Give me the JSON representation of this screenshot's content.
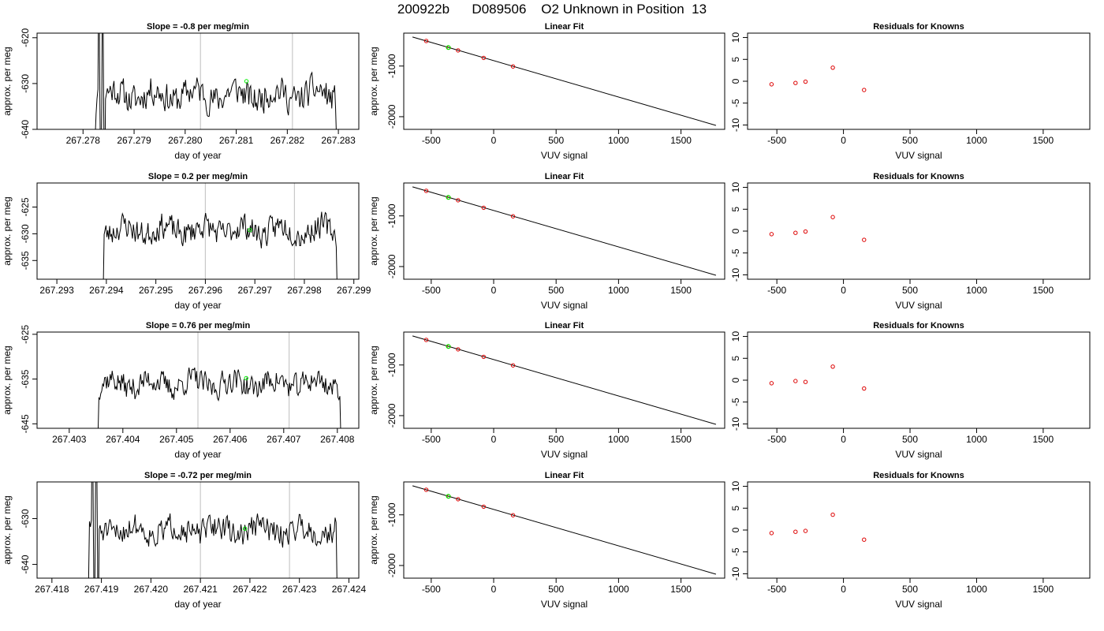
{
  "figure": {
    "title": "200922b      D089506    O2 Unknown in Position  13"
  },
  "chart_data": [
    {
      "type": "line",
      "panel": "timeseries",
      "row": 1,
      "title": "Slope =  -0.8  per meg/min",
      "xlabel": "day of year",
      "ylabel": "approx. per meg",
      "xlim": [
        267.2771,
        267.2834
      ],
      "ylim": [
        -640,
        -619
      ],
      "xticks": [
        267.278,
        267.279,
        267.28,
        267.281,
        267.282,
        267.283
      ],
      "xtick_labels": [
        "267.278",
        "267.279",
        "267.280",
        "267.281",
        "267.282",
        "267.283"
      ],
      "yticks": [
        -640,
        -630,
        -620
      ],
      "ytick_labels": [
        "-640",
        "-630",
        "-620"
      ],
      "vlines": [
        267.2803,
        267.2821
      ],
      "highlight_point": {
        "x": 267.2812,
        "y": -629.5
      },
      "series_x_range": [
        267.2782,
        267.283
      ],
      "series_y_offset": -632.5,
      "series_y_amp": 3.5,
      "series_seed": 11,
      "series_spikes": true
    },
    {
      "type": "line",
      "panel": "fit",
      "row": 1,
      "title": "Linear Fit",
      "xlabel": "VUV signal",
      "ylabel": "approx. per meg",
      "xlim": [
        -720,
        1850
      ],
      "ylim": [
        -2250,
        -350
      ],
      "xticks": [
        -500,
        0,
        500,
        1000,
        1500
      ],
      "xtick_labels": [
        "-500",
        "0",
        "500",
        "1000",
        "1500"
      ],
      "yticks": [
        -2000,
        -1000
      ],
      "ytick_labels": [
        "-2000",
        "-1000"
      ],
      "fit_line": {
        "x": [
          -650,
          1780
        ],
        "y": [
          -426,
          -2172
        ]
      },
      "points": {
        "x": [
          -540,
          -360,
          -285,
          -80,
          155
        ],
        "y": [
          -505,
          -636,
          -691,
          -839,
          -1008
        ]
      },
      "highlight_point": {
        "x": -363,
        "y": -634
      }
    },
    {
      "type": "scatter",
      "panel": "residuals",
      "row": 1,
      "title": "Residuals for Knowns",
      "xlabel": "VUV signal",
      "ylabel": "",
      "xlim": [
        -720,
        1850
      ],
      "ylim": [
        -11,
        11
      ],
      "xticks": [
        -500,
        0,
        500,
        1000,
        1500
      ],
      "xtick_labels": [
        "-500",
        "0",
        "500",
        "1000",
        "1500"
      ],
      "yticks": [
        -10,
        -5,
        0,
        5,
        10
      ],
      "ytick_labels": [
        "-10",
        "-5",
        "0",
        "5",
        "10"
      ],
      "points": {
        "x": [
          -540,
          -360,
          -285,
          -80,
          155
        ],
        "y": [
          -0.7,
          -0.4,
          -0.1,
          3.1,
          -2.0
        ]
      }
    },
    {
      "type": "line",
      "panel": "timeseries",
      "row": 2,
      "title": "Slope =  0.2  per meg/min",
      "xlabel": "day of year",
      "ylabel": "approx. per meg",
      "xlim": [
        267.2926,
        267.2991
      ],
      "ylim": [
        -638.5,
        -620.5
      ],
      "xticks": [
        267.293,
        267.294,
        267.295,
        267.296,
        267.297,
        267.298,
        267.299
      ],
      "xtick_labels": [
        "267.293",
        "267.294",
        "267.295",
        "267.296",
        "267.297",
        "267.298",
        "267.299"
      ],
      "yticks": [
        -635,
        -630,
        -625
      ],
      "ytick_labels": [
        "-635",
        "-630",
        "-625"
      ],
      "vlines": [
        267.296,
        267.2978
      ],
      "highlight_point": {
        "x": 267.2969,
        "y": -629.3
      },
      "series_x_range": [
        267.2939,
        267.2987
      ],
      "series_y_offset": -629.3,
      "series_y_amp": 2.6,
      "series_seed": 23,
      "series_spikes": false
    },
    {
      "type": "line",
      "panel": "fit",
      "row": 2,
      "title": "Linear Fit",
      "xlabel": "VUV signal",
      "ylabel": "approx. per meg",
      "xlim": [
        -720,
        1850
      ],
      "ylim": [
        -2250,
        -350
      ],
      "xticks": [
        -500,
        0,
        500,
        1000,
        1500
      ],
      "xtick_labels": [
        "-500",
        "0",
        "500",
        "1000",
        "1500"
      ],
      "yticks": [
        -2000,
        -1000
      ],
      "ytick_labels": [
        "-2000",
        "-1000"
      ],
      "fit_line": {
        "x": [
          -650,
          1780
        ],
        "y": [
          -426,
          -2172
        ]
      },
      "points": {
        "x": [
          -540,
          -360,
          -285,
          -80,
          155
        ],
        "y": [
          -505,
          -636,
          -691,
          -839,
          -1008
        ]
      },
      "highlight_point": {
        "x": -363,
        "y": -634
      }
    },
    {
      "type": "scatter",
      "panel": "residuals",
      "row": 2,
      "title": "Residuals for Knowns",
      "xlabel": "VUV signal",
      "ylabel": "",
      "xlim": [
        -720,
        1850
      ],
      "ylim": [
        -11,
        11
      ],
      "xticks": [
        -500,
        0,
        500,
        1000,
        1500
      ],
      "xtick_labels": [
        "-500",
        "0",
        "500",
        "1000",
        "1500"
      ],
      "yticks": [
        -10,
        -5,
        0,
        5,
        10
      ],
      "ytick_labels": [
        "-10",
        "-5",
        "0",
        "5",
        "10"
      ],
      "points": {
        "x": [
          -540,
          -360,
          -285,
          -80,
          155
        ],
        "y": [
          -0.7,
          -0.4,
          -0.1,
          3.2,
          -2.0
        ]
      }
    },
    {
      "type": "line",
      "panel": "timeseries",
      "row": 3,
      "title": "Slope =  0.76  per meg/min",
      "xlabel": "day of year",
      "ylabel": "approx. per meg",
      "xlim": [
        267.4024,
        267.4084
      ],
      "ylim": [
        -646,
        -624.5
      ],
      "xticks": [
        267.403,
        267.404,
        267.405,
        267.406,
        267.407,
        267.408
      ],
      "xtick_labels": [
        "267.403",
        "267.404",
        "267.405",
        "267.406",
        "267.407",
        "267.408"
      ],
      "yticks": [
        -645,
        -635,
        -625
      ],
      "ytick_labels": [
        "-645",
        "-635",
        "-625"
      ],
      "vlines": [
        267.4054,
        267.4071
      ],
      "highlight_point": {
        "x": 267.4063,
        "y": -634.8
      },
      "series_x_range": [
        267.4035,
        267.4081
      ],
      "series_y_offset": -636,
      "series_y_amp": 3.0,
      "series_seed": 37,
      "series_spikes": false
    },
    {
      "type": "line",
      "panel": "fit",
      "row": 3,
      "title": "Linear Fit",
      "xlabel": "VUV signal",
      "ylabel": "approx. per meg",
      "xlim": [
        -720,
        1850
      ],
      "ylim": [
        -2250,
        -350
      ],
      "xticks": [
        -500,
        0,
        500,
        1000,
        1500
      ],
      "xtick_labels": [
        "-500",
        "0",
        "500",
        "1000",
        "1500"
      ],
      "yticks": [
        -2000,
        -1000
      ],
      "ytick_labels": [
        "-2000",
        "-1000"
      ],
      "fit_line": {
        "x": [
          -650,
          1780
        ],
        "y": [
          -426,
          -2172
        ]
      },
      "points": {
        "x": [
          -540,
          -360,
          -285,
          -80,
          155
        ],
        "y": [
          -505,
          -636,
          -691,
          -839,
          -1008
        ]
      },
      "highlight_point": {
        "x": -363,
        "y": -634
      }
    },
    {
      "type": "scatter",
      "panel": "residuals",
      "row": 3,
      "title": "Residuals for Knowns",
      "xlabel": "VUV signal",
      "ylabel": "",
      "xlim": [
        -720,
        1850
      ],
      "ylim": [
        -11,
        11
      ],
      "xticks": [
        -500,
        0,
        500,
        1000,
        1500
      ],
      "xtick_labels": [
        "-500",
        "0",
        "500",
        "1000",
        "1500"
      ],
      "yticks": [
        -10,
        -5,
        0,
        5,
        10
      ],
      "ytick_labels": [
        "-10",
        "-5",
        "0",
        "5",
        "10"
      ],
      "points": {
        "x": [
          -540,
          -360,
          -285,
          -80,
          155
        ],
        "y": [
          -0.7,
          -0.2,
          -0.4,
          3.1,
          -1.9
        ]
      }
    },
    {
      "type": "line",
      "panel": "timeseries",
      "row": 4,
      "title": "Slope =  -0.72  per meg/min",
      "xlabel": "day of year",
      "ylabel": "approx. per meg",
      "xlim": [
        267.4177,
        267.4242
      ],
      "ylim": [
        -643,
        -622
      ],
      "xticks": [
        267.418,
        267.419,
        267.42,
        267.421,
        267.422,
        267.423,
        267.424
      ],
      "xtick_labels": [
        "267.418",
        "267.419",
        "267.420",
        "267.421",
        "267.422",
        "267.423",
        "267.424"
      ],
      "yticks": [
        -640,
        -630
      ],
      "ytick_labels": [
        "-640",
        "-630"
      ],
      "vlines": [
        267.421,
        267.4228
      ],
      "highlight_point": {
        "x": 267.4219,
        "y": -632.2
      },
      "series_x_range": [
        267.4187,
        267.4238
      ],
      "series_y_offset": -632.5,
      "series_y_amp": 3.0,
      "series_seed": 51,
      "series_spikes": true
    },
    {
      "type": "line",
      "panel": "fit",
      "row": 4,
      "title": "Linear Fit",
      "xlabel": "VUV signal",
      "ylabel": "approx. per meg",
      "xlim": [
        -720,
        1850
      ],
      "ylim": [
        -2250,
        -350
      ],
      "xticks": [
        -500,
        0,
        500,
        1000,
        1500
      ],
      "xtick_labels": [
        "-500",
        "0",
        "500",
        "1000",
        "1500"
      ],
      "yticks": [
        -2000,
        -1000
      ],
      "ytick_labels": [
        "-2000",
        "-1000"
      ],
      "fit_line": {
        "x": [
          -650,
          1780
        ],
        "y": [
          -426,
          -2172
        ]
      },
      "points": {
        "x": [
          -540,
          -360,
          -285,
          -80,
          155
        ],
        "y": [
          -505,
          -636,
          -691,
          -839,
          -1008
        ]
      },
      "highlight_point": {
        "x": -363,
        "y": -634
      }
    },
    {
      "type": "scatter",
      "panel": "residuals",
      "row": 4,
      "title": "Residuals for Knowns",
      "xlabel": "VUV signal",
      "ylabel": "",
      "xlim": [
        -720,
        1850
      ],
      "ylim": [
        -11,
        11
      ],
      "xticks": [
        -500,
        0,
        500,
        1000,
        1500
      ],
      "xtick_labels": [
        "-500",
        "0",
        "500",
        "1000",
        "1500"
      ],
      "yticks": [
        -10,
        -5,
        0,
        5,
        10
      ],
      "ytick_labels": [
        "-10",
        "-5",
        "0",
        "5",
        "10"
      ],
      "points": {
        "x": [
          -540,
          -360,
          -285,
          -80,
          155
        ],
        "y": [
          -0.7,
          -0.4,
          -0.2,
          3.5,
          -2.2
        ]
      }
    }
  ],
  "colors": {
    "line": "#000000",
    "knowns": "#dd0000",
    "unknown": "#00ee00",
    "vline": "#c8c8c8"
  }
}
